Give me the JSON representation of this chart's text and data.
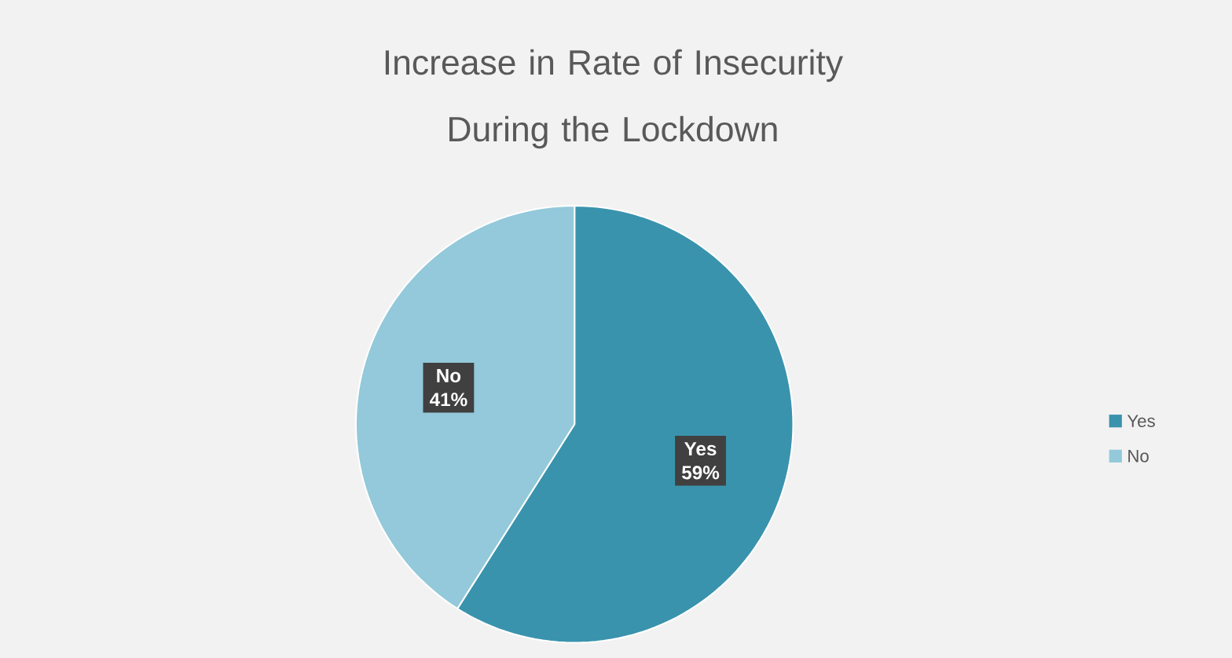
{
  "chart_data": {
    "type": "pie",
    "title": "Increase in Rate of Insecurity During the Lockdown",
    "categories": [
      "Yes",
      "No"
    ],
    "values": [
      59,
      41
    ],
    "colors": [
      "#3a93ad",
      "#93c9da"
    ],
    "value_labels": [
      "59%",
      "41%"
    ],
    "legend": "right"
  }
}
